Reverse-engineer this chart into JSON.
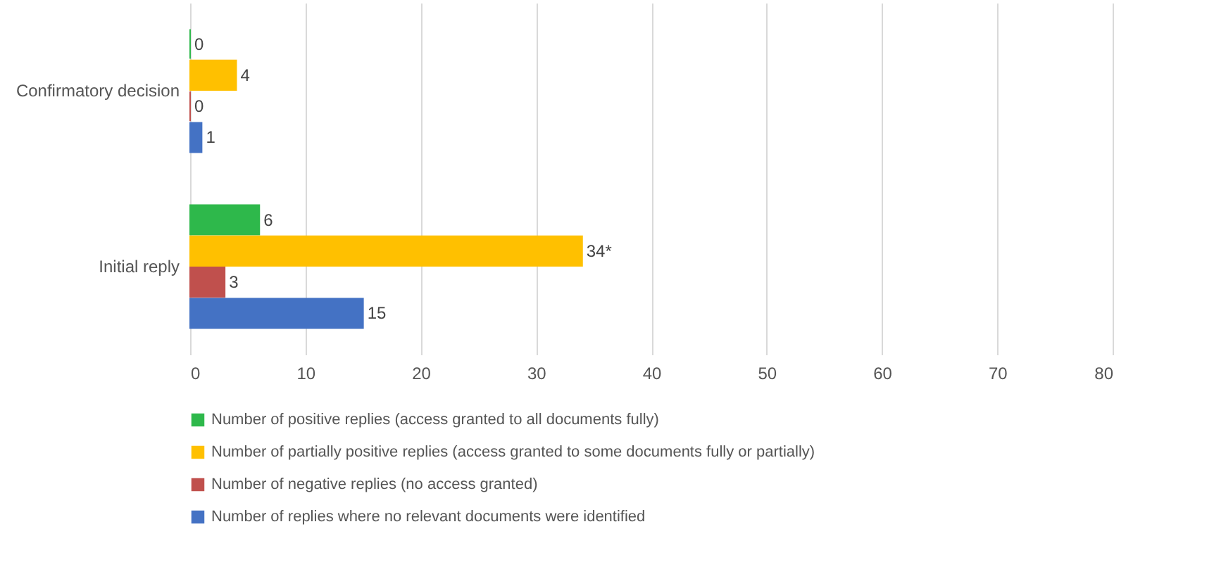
{
  "chart_data": {
    "type": "bar",
    "orientation": "horizontal",
    "categories": [
      "Confirmatory decision",
      "Initial reply"
    ],
    "series": [
      {
        "name": "Number of positive replies (access granted to all documents fully)",
        "color": "#2eb84b",
        "values": [
          0,
          6
        ],
        "value_labels": [
          "0",
          "6"
        ]
      },
      {
        "name": "Number of partially positive replies (access granted to some documents fully or partially)",
        "color": "#ffc000",
        "values": [
          4,
          34
        ],
        "value_labels": [
          "4",
          "34*"
        ]
      },
      {
        "name": "Number of negative replies (no access granted)",
        "color": "#c0504d",
        "values": [
          0,
          3
        ],
        "value_labels": [
          "0",
          "3"
        ]
      },
      {
        "name": "Number of replies where no relevant documents were identified",
        "color": "#4472c4",
        "values": [
          1,
          15
        ],
        "value_labels": [
          "1",
          "15"
        ]
      }
    ],
    "xlim": [
      0,
      80
    ],
    "xticks": [
      0,
      10,
      20,
      30,
      40,
      50,
      60,
      70,
      80
    ],
    "grid": "x",
    "legend": "bottom"
  }
}
